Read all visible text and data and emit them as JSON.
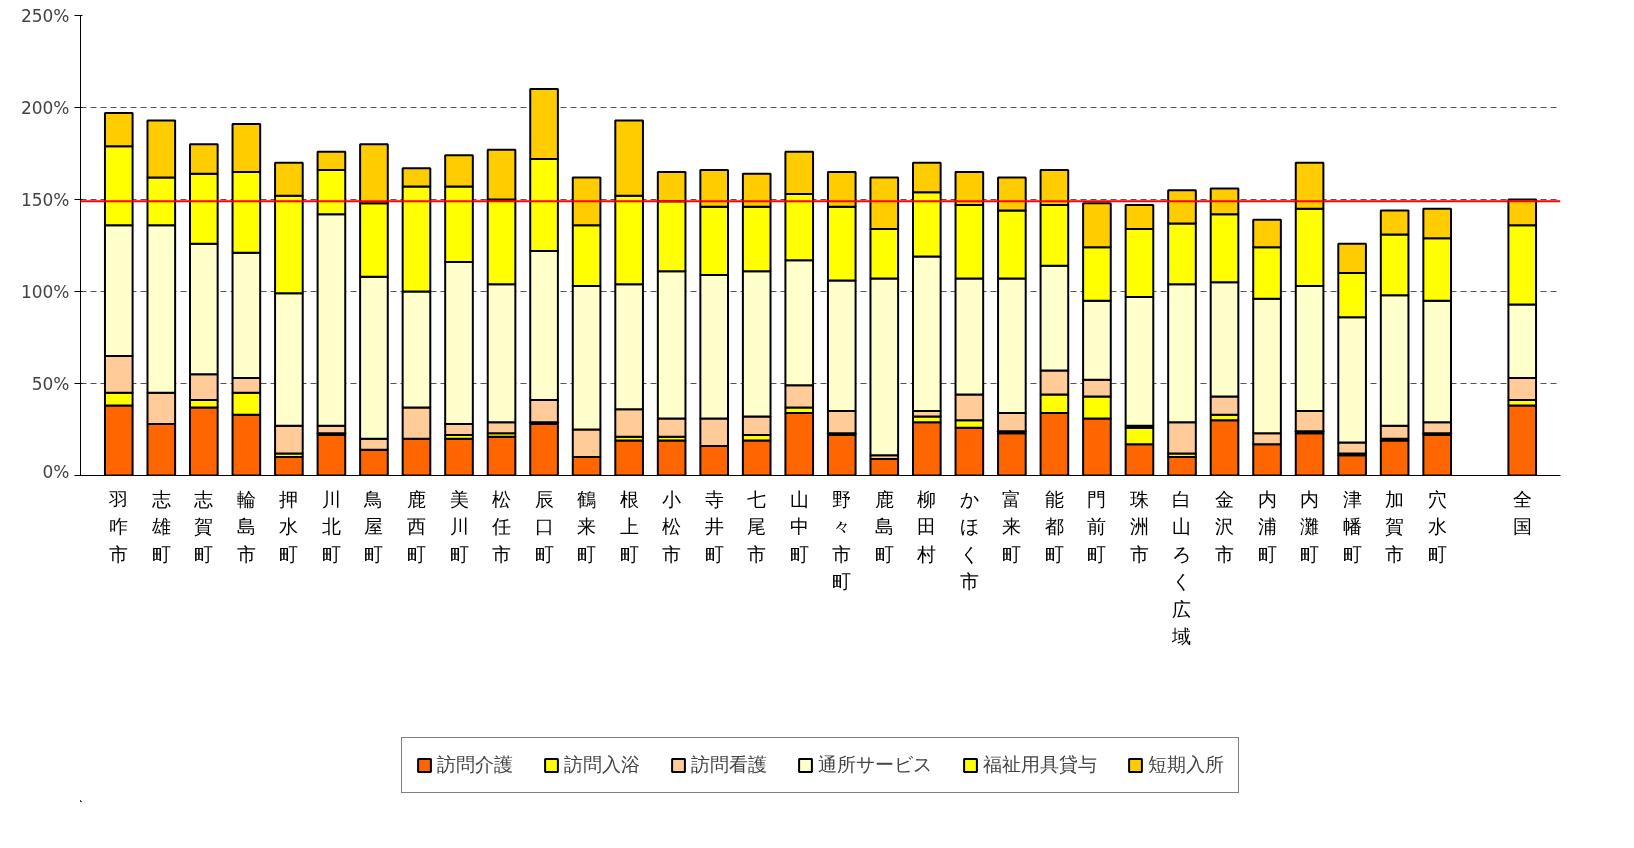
{
  "chart_data": {
    "type": "bar",
    "stacked": true,
    "categories": [
      "羽咋市",
      "志雄町",
      "志賀町",
      "輪島市",
      "押水町",
      "川北町",
      "鳥屋町",
      "鹿西町",
      "美川町",
      "松任市",
      "辰口町",
      "鶴来町",
      "根上町",
      "小松市",
      "寺井町",
      "七尾市",
      "山中町",
      "野々市町",
      "鹿島町",
      "柳田村",
      "かほく市",
      "富来町",
      "能都町",
      "門前町",
      "珠洲市",
      "白山ろく広域",
      "金沢市",
      "内浦町",
      "内灘町",
      "津幡町",
      "加賀市",
      "穴水町",
      null,
      "全国"
    ],
    "series": [
      {
        "name": "訪問介護",
        "color": "#ff6600",
        "values": [
          38,
          28,
          37,
          33,
          10,
          22,
          14,
          20,
          20,
          21,
          28,
          10,
          19,
          19,
          16,
          19,
          34,
          22,
          9,
          29,
          26,
          23,
          34,
          31,
          17,
          10,
          30,
          17,
          23,
          11,
          19,
          22,
          null,
          38
        ]
      },
      {
        "name": "訪問入浴",
        "color": "#ffff00",
        "values": [
          7,
          0,
          4,
          12,
          2,
          1,
          0,
          0,
          2,
          2,
          1,
          0,
          2,
          2,
          0,
          3,
          3,
          1,
          0,
          3,
          4,
          1,
          10,
          12,
          9,
          2,
          3,
          0,
          1,
          1,
          1,
          1,
          null,
          3
        ]
      },
      {
        "name": "訪問看護",
        "color": "#ffcc99",
        "values": [
          20,
          17,
          14,
          8,
          15,
          4,
          6,
          17,
          6,
          6,
          12,
          15,
          15,
          10,
          15,
          10,
          12,
          12,
          2,
          3,
          14,
          10,
          13,
          9,
          1,
          17,
          10,
          6,
          11,
          6,
          7,
          6,
          null,
          12
        ]
      },
      {
        "name": "通所サービス",
        "color": "#ffffcc",
        "values": [
          71,
          91,
          71,
          68,
          72,
          115,
          88,
          63,
          88,
          75,
          81,
          78,
          68,
          80,
          78,
          79,
          68,
          71,
          96,
          84,
          63,
          73,
          57,
          43,
          70,
          75,
          62,
          73,
          68,
          68,
          71,
          66,
          null,
          40
        ]
      },
      {
        "name": "福祉用具貸与",
        "color": "#ffff00",
        "values": [
          43,
          26,
          38,
          44,
          53,
          24,
          40,
          57,
          41,
          46,
          50,
          33,
          48,
          38,
          37,
          35,
          36,
          40,
          27,
          35,
          40,
          37,
          33,
          29,
          37,
          33,
          37,
          28,
          42,
          24,
          33,
          34,
          null,
          43
        ]
      },
      {
        "name": "短期入所",
        "color": "#ffcc00",
        "values": [
          18,
          31,
          16,
          26,
          18,
          10,
          32,
          10,
          17,
          27,
          38,
          26,
          41,
          16,
          20,
          18,
          23,
          19,
          28,
          16,
          18,
          18,
          19,
          24,
          13,
          18,
          14,
          15,
          25,
          16,
          13,
          16,
          null,
          14
        ]
      }
    ],
    "ylim": [
      0,
      250
    ],
    "yticks": [
      {
        "value": 0,
        "label": "0%"
      },
      {
        "value": 50,
        "label": "50%"
      },
      {
        "value": 100,
        "label": "100%"
      },
      {
        "value": 150,
        "label": "150%"
      },
      {
        "value": 200,
        "label": "200%"
      },
      {
        "value": 250,
        "label": "250%"
      }
    ],
    "grid": "y",
    "legend": "bottom",
    "ref_lines": [
      {
        "axis": "y",
        "value": 149,
        "color": "#ff0000"
      }
    ]
  }
}
